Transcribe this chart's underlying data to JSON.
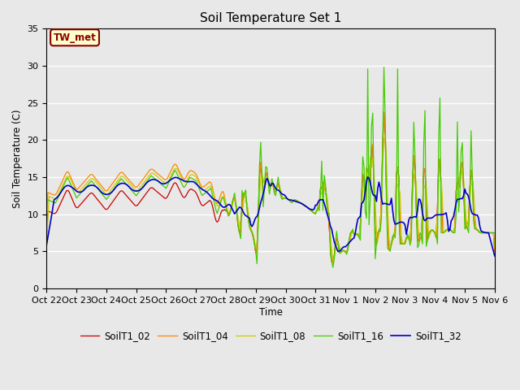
{
  "title": "Soil Temperature Set 1",
  "ylabel": "Soil Temperature (C)",
  "xlabel": "Time",
  "ylim": [
    0,
    35
  ],
  "yticks": [
    0,
    5,
    10,
    15,
    20,
    25,
    30,
    35
  ],
  "bg_color": "#e8e8e8",
  "annotation_label": "TW_met",
  "annotation_bg": "#ffffcc",
  "annotation_border": "#8b0000",
  "annotation_text_color": "#8b0000",
  "colors": [
    "#cc0000",
    "#ff8800",
    "#cccc00",
    "#44cc00",
    "#0000cc"
  ],
  "labels": [
    "SoilT1_02",
    "SoilT1_04",
    "SoilT1_08",
    "SoilT1_16",
    "SoilT1_32"
  ],
  "xtick_labels": [
    "Oct 22",
    "Oct 23",
    "Oct 24",
    "Oct 25",
    "Oct 26",
    "Oct 27",
    "Oct 28",
    "Oct 29",
    "Oct 30",
    "Oct 31",
    "Nov 1",
    "Nov 2",
    "Nov 3",
    "Nov 4",
    "Nov 5",
    "Nov 6"
  ]
}
